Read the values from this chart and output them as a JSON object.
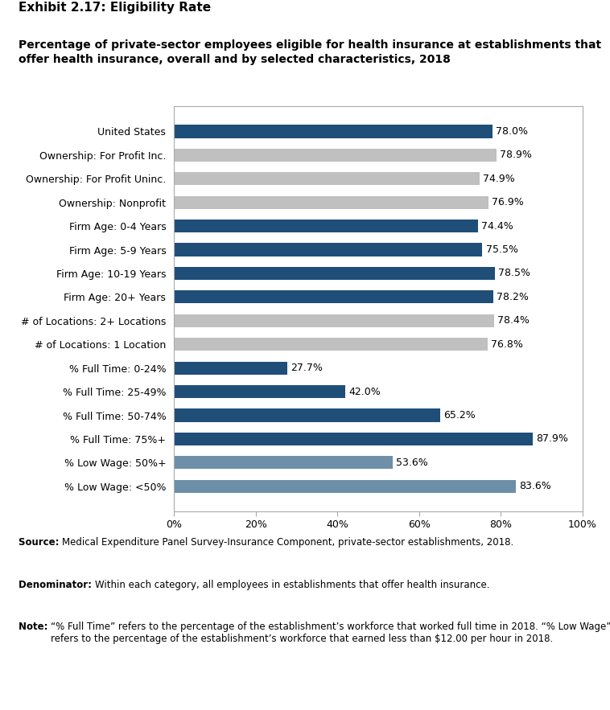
{
  "title_line1": "Exhibit 2.17: Eligibility Rate",
  "title_line2": "Percentage of private-sector employees eligible for health insurance at establishments that\noffer health insurance, overall and by selected characteristics, 2018",
  "categories": [
    "% Low Wage: <50%",
    "% Low Wage: 50%+",
    "% Full Time: 75%+",
    "% Full Time: 50-74%",
    "% Full Time: 25-49%",
    "% Full Time: 0-24%",
    "# of Locations: 1 Location",
    "# of Locations: 2+ Locations",
    "Firm Age: 20+ Years",
    "Firm Age: 10-19 Years",
    "Firm Age: 5-9 Years",
    "Firm Age: 0-4 Years",
    "Ownership: Nonprofit",
    "Ownership: For Profit Uninc.",
    "Ownership: For Profit Inc.",
    "United States"
  ],
  "values": [
    83.6,
    53.6,
    87.9,
    65.2,
    42.0,
    27.7,
    76.8,
    78.4,
    78.2,
    78.5,
    75.5,
    74.4,
    76.9,
    74.9,
    78.9,
    78.0
  ],
  "colors": [
    "#6d8fa8",
    "#6d8fa8",
    "#1f4e79",
    "#1f4e79",
    "#1f4e79",
    "#1f4e79",
    "#c0c0c0",
    "#c0c0c0",
    "#1f4e79",
    "#1f4e79",
    "#1f4e79",
    "#1f4e79",
    "#c0c0c0",
    "#c0c0c0",
    "#c0c0c0",
    "#1f4e79"
  ],
  "xlim": [
    0,
    100
  ],
  "xticks": [
    0,
    20,
    40,
    60,
    80,
    100
  ],
  "xticklabels": [
    "0%",
    "20%",
    "40%",
    "60%",
    "80%",
    "100%"
  ],
  "bar_height": 0.55,
  "label_fontsize": 9,
  "tick_fontsize": 9,
  "title1_fontsize": 11,
  "title2_fontsize": 10,
  "note_fontsize": 8.5
}
